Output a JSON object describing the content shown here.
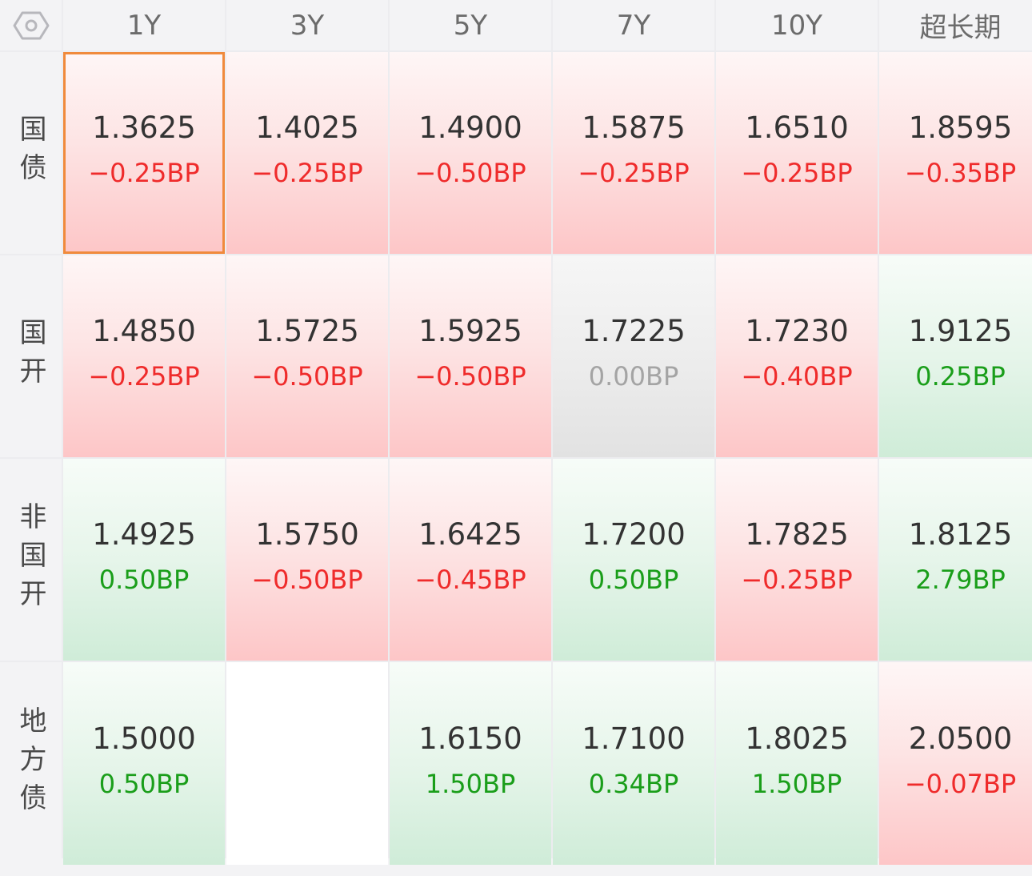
{
  "header": {
    "settings_icon": "hexagon-settings-icon",
    "columns": [
      "1Y",
      "3Y",
      "5Y",
      "7Y",
      "10Y",
      "超长期"
    ]
  },
  "colors": {
    "down": "#ef2b2b",
    "up": "#1a9e1a",
    "flat": "#a4a4a4",
    "selected_border": "#f08a3c"
  },
  "rows": [
    {
      "label": "国债",
      "cells": [
        {
          "value": "1.3625",
          "change": "−0.25BP",
          "trend": "down",
          "selected": true
        },
        {
          "value": "1.4025",
          "change": "−0.25BP",
          "trend": "down"
        },
        {
          "value": "1.4900",
          "change": "−0.50BP",
          "trend": "down"
        },
        {
          "value": "1.5875",
          "change": "−0.25BP",
          "trend": "down"
        },
        {
          "value": "1.6510",
          "change": "−0.25BP",
          "trend": "down"
        },
        {
          "value": "1.8595",
          "change": "−0.35BP",
          "trend": "down"
        }
      ]
    },
    {
      "label": "国开",
      "cells": [
        {
          "value": "1.4850",
          "change": "−0.25BP",
          "trend": "down"
        },
        {
          "value": "1.5725",
          "change": "−0.50BP",
          "trend": "down"
        },
        {
          "value": "1.5925",
          "change": "−0.50BP",
          "trend": "down"
        },
        {
          "value": "1.7225",
          "change": "0.00BP",
          "trend": "flat"
        },
        {
          "value": "1.7230",
          "change": "−0.40BP",
          "trend": "down"
        },
        {
          "value": "1.9125",
          "change": "0.25BP",
          "trend": "up"
        }
      ]
    },
    {
      "label": "非国开",
      "cells": [
        {
          "value": "1.4925",
          "change": "0.50BP",
          "trend": "up"
        },
        {
          "value": "1.5750",
          "change": "−0.50BP",
          "trend": "down"
        },
        {
          "value": "1.6425",
          "change": "−0.45BP",
          "trend": "down"
        },
        {
          "value": "1.7200",
          "change": "0.50BP",
          "trend": "up"
        },
        {
          "value": "1.7825",
          "change": "−0.25BP",
          "trend": "down"
        },
        {
          "value": "1.8125",
          "change": "2.79BP",
          "trend": "up"
        }
      ]
    },
    {
      "label": "地方债",
      "cells": [
        {
          "value": "1.5000",
          "change": "0.50BP",
          "trend": "up"
        },
        {
          "value": "",
          "change": "",
          "trend": "empty"
        },
        {
          "value": "1.6150",
          "change": "1.50BP",
          "trend": "up"
        },
        {
          "value": "1.7100",
          "change": "0.34BP",
          "trend": "up"
        },
        {
          "value": "1.8025",
          "change": "1.50BP",
          "trend": "up"
        },
        {
          "value": "2.0500",
          "change": "−0.07BP",
          "trend": "down"
        }
      ]
    }
  ]
}
